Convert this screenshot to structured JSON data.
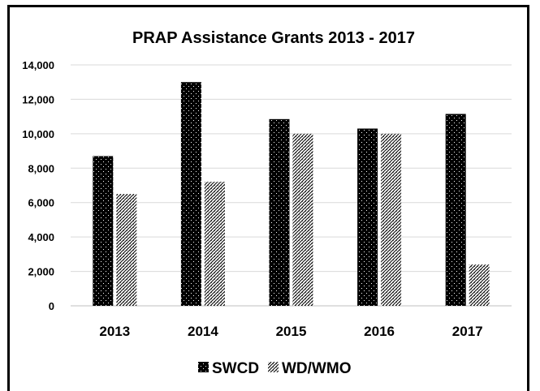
{
  "chart_data": {
    "type": "bar",
    "title": "PRAP Assistance Grants 2013 - 2017",
    "xlabel": "",
    "ylabel": "",
    "categories": [
      "2013",
      "2014",
      "2015",
      "2016",
      "2017"
    ],
    "series": [
      {
        "name": "SWCD",
        "values": [
          8700,
          13000,
          10850,
          10300,
          11150
        ],
        "pattern": "dark-dotted",
        "color": "#000000"
      },
      {
        "name": "WD/WMO",
        "values": [
          6500,
          7200,
          10000,
          10000,
          2400
        ],
        "pattern": "light-hatched",
        "color": "#000000"
      }
    ],
    "ylim": [
      0,
      14000
    ],
    "yticks": [
      0,
      2000,
      4000,
      6000,
      8000,
      10000,
      12000,
      14000
    ],
    "ytick_labels": [
      "0",
      "2,000",
      "4,000",
      "6,000",
      "8,000",
      "10,000",
      "12,000",
      "14,000"
    ],
    "grid": true,
    "grid_color": "#d9d9d9",
    "legend_position": "bottom"
  }
}
